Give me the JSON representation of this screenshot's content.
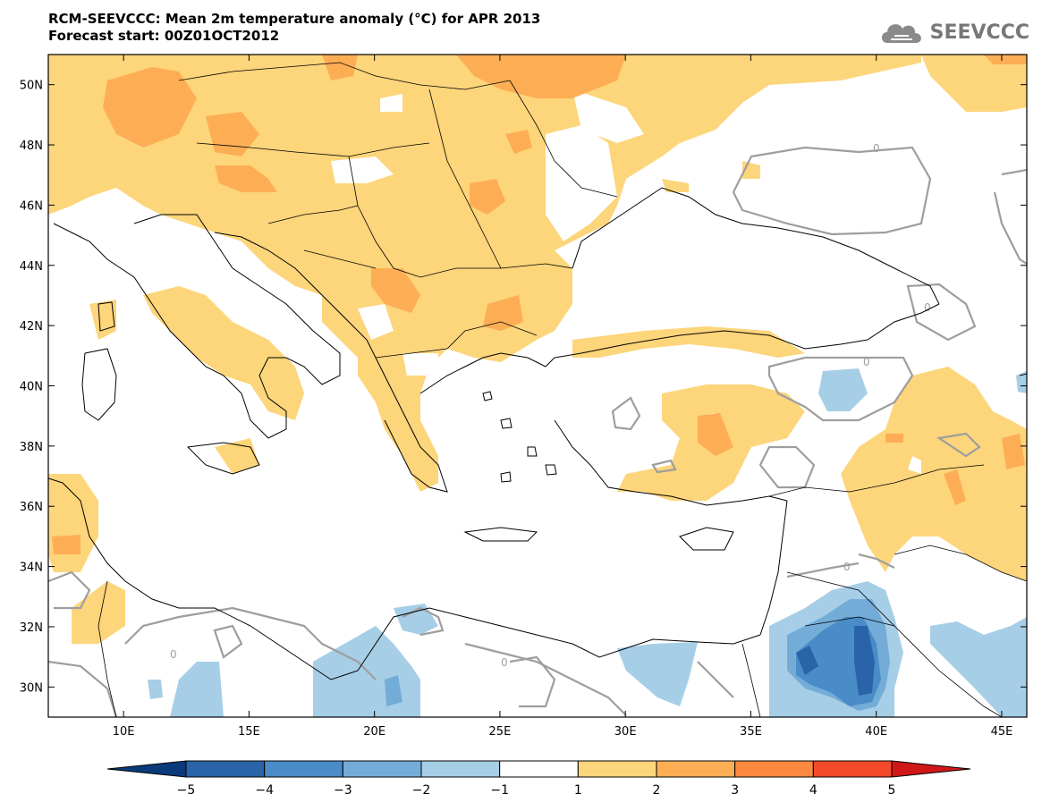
{
  "header": {
    "title_line1": "RCM-SEEVCCC: Mean 2m temperature anomaly (°C) for APR 2013",
    "title_line2": "Forecast start: 00Z01OCT2012"
  },
  "logo": {
    "text": "SEEVCCC",
    "icon": "cloud-icon"
  },
  "map": {
    "lon_range": [
      7,
      46
    ],
    "lat_range": [
      29,
      51
    ],
    "lat_ticks": [
      {
        "value": 50,
        "label": "50N"
      },
      {
        "value": 48,
        "label": "48N"
      },
      {
        "value": 46,
        "label": "46N"
      },
      {
        "value": 44,
        "label": "44N"
      },
      {
        "value": 42,
        "label": "42N"
      },
      {
        "value": 40,
        "label": "40N"
      },
      {
        "value": 38,
        "label": "38N"
      },
      {
        "value": 36,
        "label": "36N"
      },
      {
        "value": 34,
        "label": "34N"
      },
      {
        "value": 32,
        "label": "32N"
      },
      {
        "value": 30,
        "label": "30N"
      }
    ],
    "lon_ticks": [
      {
        "value": 10,
        "label": "10E"
      },
      {
        "value": 15,
        "label": "15E"
      },
      {
        "value": 20,
        "label": "20E"
      },
      {
        "value": 25,
        "label": "25E"
      },
      {
        "value": 30,
        "label": "30E"
      },
      {
        "value": 35,
        "label": "35E"
      },
      {
        "value": 40,
        "label": "40E"
      },
      {
        "value": 45,
        "label": "45E"
      }
    ],
    "contour_label": "0"
  },
  "colorbar": {
    "labels": [
      "−5",
      "−4",
      "−3",
      "−2",
      "−1",
      "1",
      "2",
      "3",
      "4",
      "5"
    ],
    "colors": [
      "#0a3a7a",
      "#2a64a8",
      "#4a8cc8",
      "#74acd8",
      "#a6cee6",
      "#ffffff",
      "#fdd57a",
      "#fdae55",
      "#fb8a40",
      "#f24a2a",
      "#d01818"
    ]
  },
  "colors": {
    "anom_1_2": "#fdd57a",
    "anom_2_3": "#fdae55",
    "anom_m1_m2": "#a6cee6",
    "anom_m2_m3": "#74acd8",
    "anom_m3_m4": "#4a8cc8",
    "anom_m4_m5": "#2a64a8",
    "contour": "#9e9e9e",
    "coast": "#000000"
  }
}
